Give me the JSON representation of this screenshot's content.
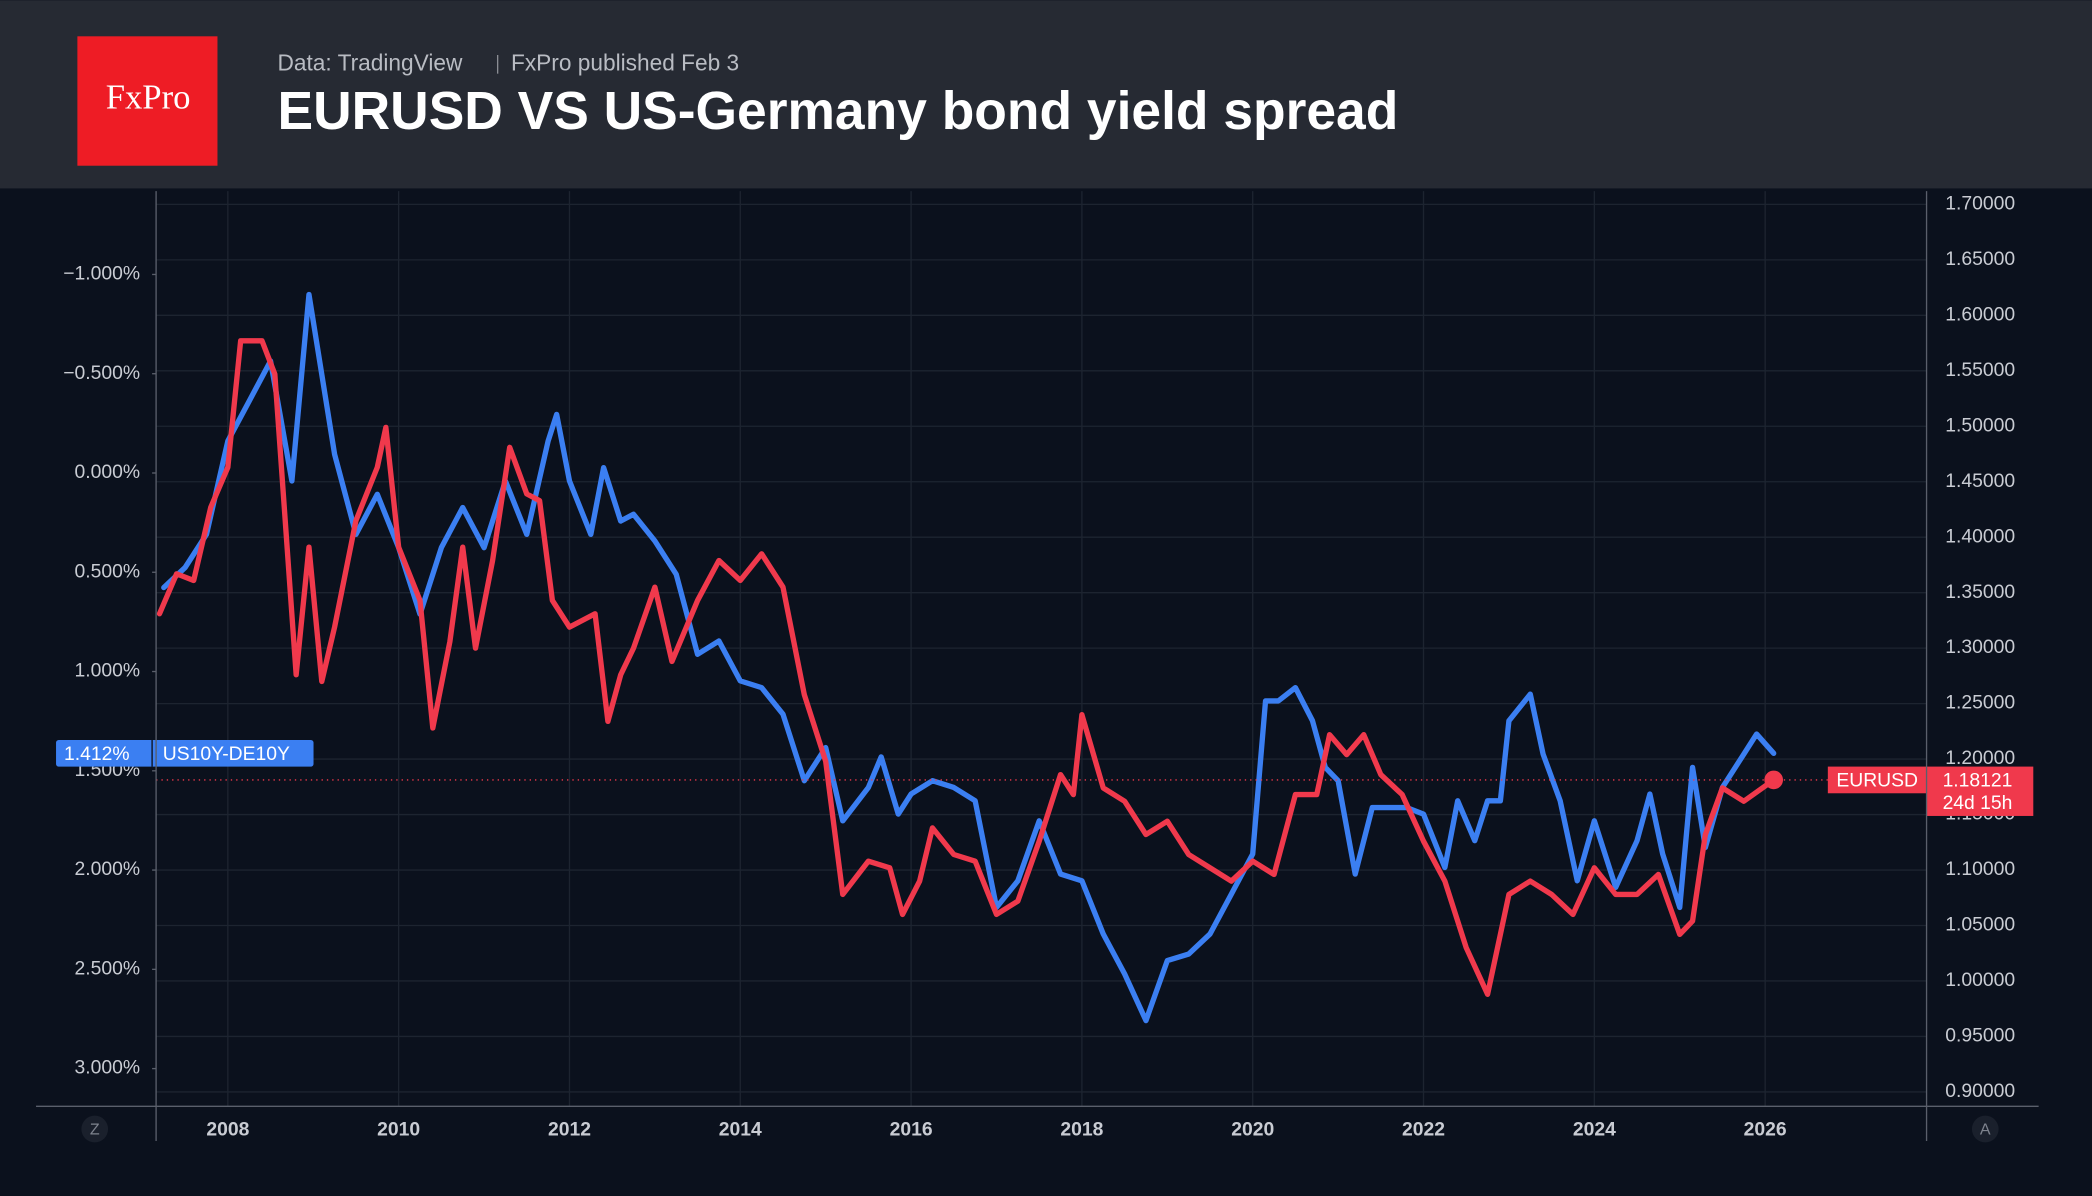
{
  "header": {
    "logo": "FxPro",
    "source": "Data: TradingView",
    "published": "FxPro published Feb 3",
    "title": "EURUSD VS US-Germany bond yield spread"
  },
  "controls": {
    "left": "Z",
    "right": "A"
  },
  "chart_data": {
    "type": "line",
    "title": "EURUSD VS US-Germany bond yield spread",
    "xlim": [
      2007.16,
      2027.89
    ],
    "xticks": [
      2008,
      2010,
      2012,
      2014,
      2016,
      2018,
      2020,
      2022,
      2024,
      2026
    ],
    "ylim": [
      -1.42,
      3.19
    ],
    "yinvert": true,
    "yticks": [
      {
        "value": -1,
        "label": "−1.000%"
      },
      {
        "value": -0.5,
        "label": "−0.500%"
      },
      {
        "value": 0,
        "label": "0.000%"
      },
      {
        "value": 0.5,
        "label": "0.500%"
      },
      {
        "value": 1,
        "label": "1.000%"
      },
      {
        "value": 1.5,
        "label": "1.500%"
      },
      {
        "value": 2,
        "label": "2.000%"
      },
      {
        "value": 2.5,
        "label": "2.500%"
      },
      {
        "value": 3,
        "label": "3.000%"
      }
    ],
    "y2lim": [
      0.887,
      1.712
    ],
    "y2ticks": [
      {
        "value": 0.9,
        "label": "0.90000"
      },
      {
        "value": 0.95,
        "label": "0.95000"
      },
      {
        "value": 1.0,
        "label": "1.00000"
      },
      {
        "value": 1.05,
        "label": "1.05000"
      },
      {
        "value": 1.1,
        "label": "1.10000"
      },
      {
        "value": 1.15,
        "label": "1.15000"
      },
      {
        "value": 1.2,
        "label": "1.20000"
      },
      {
        "value": 1.25,
        "label": "1.25000"
      },
      {
        "value": 1.3,
        "label": "1.30000"
      },
      {
        "value": 1.35,
        "label": "1.35000"
      },
      {
        "value": 1.4,
        "label": "1.40000"
      },
      {
        "value": 1.45,
        "label": "1.45000"
      },
      {
        "value": 1.5,
        "label": "1.50000"
      },
      {
        "value": 1.55,
        "label": "1.55000"
      },
      {
        "value": 1.6,
        "label": "1.60000"
      },
      {
        "value": 1.65,
        "label": "1.65000"
      },
      {
        "value": 1.7,
        "label": "1.70000"
      }
    ],
    "grid": true,
    "series": [
      {
        "name": "US10Y-DE10Y",
        "color": "#3b7ff2",
        "axis": "y",
        "x": [
          2007.25,
          2007.5,
          2007.75,
          2008.0,
          2008.25,
          2008.5,
          2008.75,
          2008.95,
          2009.25,
          2009.5,
          2009.75,
          2010.0,
          2010.25,
          2010.5,
          2010.75,
          2011.0,
          2011.25,
          2011.5,
          2011.75,
          2011.85,
          2012.0,
          2012.25,
          2012.4,
          2012.6,
          2012.75,
          2013.0,
          2013.25,
          2013.5,
          2013.75,
          2014.0,
          2014.25,
          2014.5,
          2014.75,
          2015.0,
          2015.2,
          2015.5,
          2015.65,
          2015.85,
          2016.0,
          2016.25,
          2016.5,
          2016.75,
          2017.0,
          2017.25,
          2017.5,
          2017.75,
          2018.0,
          2018.25,
          2018.5,
          2018.75,
          2019.0,
          2019.25,
          2019.5,
          2019.75,
          2020.0,
          2020.15,
          2020.3,
          2020.5,
          2020.7,
          2020.85,
          2021.0,
          2021.2,
          2021.4,
          2021.6,
          2021.8,
          2022.0,
          2022.25,
          2022.4,
          2022.6,
          2022.75,
          2022.9,
          2023.0,
          2023.25,
          2023.4,
          2023.6,
          2023.8,
          2024.0,
          2024.25,
          2024.5,
          2024.65,
          2024.8,
          2025.0,
          2025.15,
          2025.3,
          2025.5,
          2025.75,
          2025.9,
          2026.1
        ],
        "values": [
          0.577,
          0.476,
          0.309,
          -0.161,
          -0.362,
          -0.564,
          0.04,
          -0.899,
          -0.094,
          0.309,
          0.107,
          0.376,
          0.711,
          0.376,
          0.174,
          0.376,
          0.04,
          0.309,
          -0.161,
          -0.295,
          0.04,
          0.309,
          -0.027,
          0.242,
          0.208,
          0.342,
          0.51,
          0.913,
          0.846,
          1.047,
          1.081,
          1.215,
          1.55,
          1.383,
          1.752,
          1.584,
          1.43,
          1.718,
          1.617,
          1.55,
          1.584,
          1.651,
          2.188,
          2.054,
          1.752,
          2.02,
          2.054,
          2.322,
          2.523,
          2.758,
          2.456,
          2.423,
          2.322,
          2.121,
          1.919,
          1.148,
          1.148,
          1.081,
          1.248,
          1.483,
          1.55,
          2.02,
          1.685,
          1.685,
          1.685,
          1.718,
          1.987,
          1.651,
          1.852,
          1.651,
          1.651,
          1.248,
          1.114,
          1.416,
          1.651,
          2.054,
          1.752,
          2.087,
          1.852,
          1.617,
          1.919,
          2.188,
          1.483,
          1.886,
          1.584,
          1.416,
          1.315,
          1.412
        ],
        "end_label": {
          "value": 1.412,
          "label": "1.412%"
        }
      },
      {
        "name": "EURUSD",
        "color": "#f0394c",
        "axis": "y2",
        "x": [
          2007.2,
          2007.4,
          2007.6,
          2007.8,
          2008.0,
          2008.15,
          2008.4,
          2008.55,
          2008.8,
          2008.95,
          2009.1,
          2009.25,
          2009.5,
          2009.75,
          2009.85,
          2010.0,
          2010.25,
          2010.4,
          2010.6,
          2010.75,
          2010.9,
          2011.1,
          2011.3,
          2011.5,
          2011.65,
          2011.8,
          2012.0,
          2012.3,
          2012.45,
          2012.6,
          2012.75,
          2013.0,
          2013.2,
          2013.5,
          2013.75,
          2014.0,
          2014.25,
          2014.5,
          2014.75,
          2015.0,
          2015.2,
          2015.5,
          2015.75,
          2015.9,
          2016.1,
          2016.25,
          2016.5,
          2016.75,
          2017.0,
          2017.25,
          2017.5,
          2017.75,
          2017.9,
          2018.0,
          2018.25,
          2018.5,
          2018.75,
          2019.0,
          2019.25,
          2019.5,
          2019.75,
          2020.0,
          2020.25,
          2020.5,
          2020.75,
          2020.9,
          2021.1,
          2021.3,
          2021.5,
          2021.75,
          2022.0,
          2022.25,
          2022.5,
          2022.75,
          2023.0,
          2023.25,
          2023.5,
          2023.75,
          2024.0,
          2024.25,
          2024.5,
          2024.75,
          2025.0,
          2025.15,
          2025.3,
          2025.5,
          2025.75,
          2026.1
        ],
        "values": [
          1.331,
          1.367,
          1.361,
          1.427,
          1.463,
          1.577,
          1.577,
          1.547,
          1.276,
          1.391,
          1.27,
          1.319,
          1.415,
          1.463,
          1.499,
          1.391,
          1.343,
          1.228,
          1.306,
          1.391,
          1.3,
          1.379,
          1.481,
          1.439,
          1.433,
          1.343,
          1.319,
          1.331,
          1.234,
          1.276,
          1.3,
          1.355,
          1.288,
          1.343,
          1.379,
          1.361,
          1.385,
          1.355,
          1.258,
          1.198,
          1.078,
          1.108,
          1.102,
          1.06,
          1.09,
          1.138,
          1.114,
          1.108,
          1.06,
          1.072,
          1.126,
          1.186,
          1.168,
          1.24,
          1.174,
          1.162,
          1.132,
          1.144,
          1.114,
          1.102,
          1.09,
          1.108,
          1.096,
          1.168,
          1.168,
          1.222,
          1.204,
          1.222,
          1.186,
          1.168,
          1.126,
          1.09,
          1.03,
          0.988,
          1.078,
          1.09,
          1.078,
          1.06,
          1.102,
          1.078,
          1.078,
          1.096,
          1.042,
          1.054,
          1.132,
          1.174,
          1.162,
          1.18121
        ],
        "end_label": {
          "value": 1.18121,
          "label": "1.18121"
        },
        "countdown": "24d 15h"
      }
    ]
  }
}
